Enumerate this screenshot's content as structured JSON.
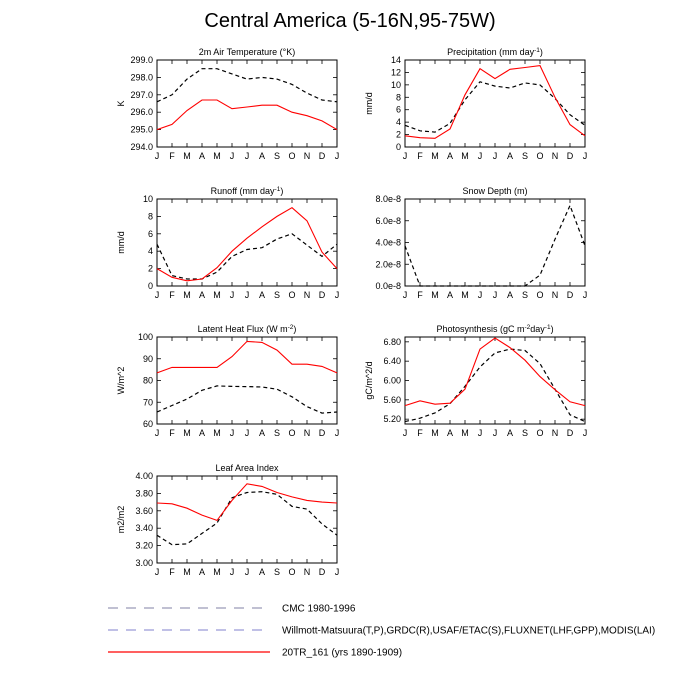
{
  "page_title": "Central America (5-16N,95-75W)",
  "months": [
    "J",
    "F",
    "M",
    "A",
    "M",
    "J",
    "J",
    "A",
    "S",
    "O",
    "N",
    "D",
    "J"
  ],
  "legend": [
    {
      "label": "CMC 1980-1996",
      "color": "#9a9ab8",
      "dash": "10,8"
    },
    {
      "label": "Willmott-Matsuura(T,P),GRDC(R),USAF/ETAC(S),FLUXNET(LHF,GPP),MODIS(LAI)",
      "color": "#9a9ad8",
      "dash": "10,8"
    },
    {
      "label": "20TR_161 (yrs 1890-1909)",
      "color": "#ff0000",
      "dash": ""
    }
  ],
  "chart_data": [
    {
      "type": "line",
      "title": "2m Air Temperature (°K)",
      "ylabel": "K",
      "ylim": [
        294.0,
        299.0
      ],
      "yticks": [
        294.0,
        295.0,
        296.0,
        297.0,
        298.0,
        299.0
      ],
      "ytick_labels": [
        "294.0",
        "295.0",
        "296.0",
        "297.0",
        "298.0",
        "299.0"
      ],
      "series": [
        {
          "style": "obs",
          "values": [
            296.6,
            297.0,
            297.9,
            298.5,
            298.5,
            298.2,
            297.9,
            298.0,
            297.9,
            297.6,
            297.1,
            296.7,
            296.6
          ]
        },
        {
          "style": "model",
          "values": [
            295.0,
            295.3,
            296.1,
            296.7,
            296.7,
            296.2,
            296.3,
            296.4,
            296.4,
            296.0,
            295.8,
            295.5,
            295.0
          ]
        }
      ]
    },
    {
      "type": "line",
      "title": "Precipitation (mm day-1)",
      "ylabel": "mm/d",
      "ylim": [
        0,
        14
      ],
      "yticks": [
        0,
        2,
        4,
        6,
        8,
        10,
        12,
        14
      ],
      "ytick_labels": [
        "0",
        "2",
        "4",
        "6",
        "8",
        "10",
        "12",
        "14"
      ],
      "series": [
        {
          "style": "obs",
          "values": [
            3.5,
            2.6,
            2.4,
            3.8,
            7.6,
            10.5,
            9.8,
            9.5,
            10.3,
            10.0,
            7.8,
            5.2,
            3.5
          ]
        },
        {
          "style": "model",
          "values": [
            1.8,
            1.5,
            1.4,
            2.9,
            8.4,
            12.6,
            11.0,
            12.5,
            12.8,
            13.1,
            8.0,
            3.6,
            1.8
          ]
        }
      ]
    },
    {
      "type": "line",
      "title": "Runoff (mm day-1)",
      "ylabel": "mm/d",
      "ylim": [
        0,
        10
      ],
      "yticks": [
        0,
        2,
        4,
        6,
        8,
        10
      ],
      "ytick_labels": [
        "0",
        "2",
        "4",
        "6",
        "8",
        "10"
      ],
      "series": [
        {
          "style": "obs",
          "values": [
            4.8,
            1.2,
            0.8,
            0.8,
            1.6,
            3.4,
            4.2,
            4.4,
            5.4,
            6.0,
            4.7,
            3.4,
            4.8
          ]
        },
        {
          "style": "model",
          "values": [
            2.0,
            1.0,
            0.6,
            0.8,
            2.1,
            4.0,
            5.5,
            6.8,
            8.0,
            9.0,
            7.5,
            3.9,
            2.0
          ]
        }
      ]
    },
    {
      "type": "line",
      "title": "Snow Depth (m)",
      "ylabel": "",
      "ylim": [
        0,
        8e-08
      ],
      "yticks": [
        0,
        2e-08,
        4e-08,
        6e-08,
        8e-08
      ],
      "ytick_labels": [
        "0.0e-8",
        "2.0e-8",
        "4.0e-8",
        "6.0e-8",
        "8.0e-8"
      ],
      "series": [
        {
          "style": "obs",
          "values": [
            3.7e-08,
            0,
            0,
            0,
            0,
            0,
            0,
            0,
            0,
            1e-08,
            4.3e-08,
            7.4e-08,
            3.7e-08
          ]
        }
      ]
    },
    {
      "type": "line",
      "title": "Latent Heat Flux (W m-2)",
      "ylabel": "W/m^2",
      "ylim": [
        60,
        100
      ],
      "yticks": [
        60,
        70,
        80,
        90,
        100
      ],
      "ytick_labels": [
        "60",
        "70",
        "80",
        "90",
        "100"
      ],
      "series": [
        {
          "style": "obs",
          "values": [
            65.5,
            68.5,
            71.5,
            75.5,
            77.5,
            77.3,
            77.2,
            77.0,
            76.0,
            72.5,
            68.0,
            65.0,
            65.5
          ]
        },
        {
          "style": "model",
          "values": [
            83.5,
            86.0,
            86.0,
            86.0,
            86.0,
            91.0,
            98.0,
            97.5,
            94.0,
            87.5,
            87.5,
            86.5,
            83.5
          ]
        }
      ]
    },
    {
      "type": "line",
      "title": "Photosynthesis (gC m-2day-1)",
      "ylabel": "gC/m^2/d",
      "ylim": [
        5.1,
        6.9
      ],
      "yticks": [
        5.2,
        5.6,
        6.0,
        6.4,
        6.8
      ],
      "ytick_labels": [
        "5.20",
        "5.60",
        "6.00",
        "6.40",
        "6.80"
      ],
      "series": [
        {
          "style": "obs",
          "values": [
            5.15,
            5.22,
            5.33,
            5.52,
            5.88,
            6.28,
            6.57,
            6.65,
            6.62,
            6.35,
            5.82,
            5.29,
            5.15
          ]
        },
        {
          "style": "model",
          "values": [
            5.48,
            5.58,
            5.51,
            5.53,
            5.82,
            6.65,
            6.88,
            6.68,
            6.42,
            6.08,
            5.81,
            5.56,
            5.48
          ]
        }
      ]
    },
    {
      "type": "line",
      "title": "Leaf Area Index",
      "ylabel": "m2/m2",
      "ylim": [
        3.0,
        4.0
      ],
      "yticks": [
        3.0,
        3.2,
        3.4,
        3.6,
        3.8,
        4.0
      ],
      "ytick_labels": [
        "3.00",
        "3.20",
        "3.40",
        "3.60",
        "3.80",
        "4.00"
      ],
      "series": [
        {
          "style": "obs",
          "values": [
            3.32,
            3.21,
            3.22,
            3.34,
            3.46,
            3.75,
            3.81,
            3.82,
            3.79,
            3.65,
            3.62,
            3.45,
            3.32
          ]
        },
        {
          "style": "model",
          "values": [
            3.69,
            3.68,
            3.63,
            3.55,
            3.49,
            3.72,
            3.91,
            3.88,
            3.81,
            3.76,
            3.72,
            3.7,
            3.69
          ]
        }
      ]
    }
  ]
}
